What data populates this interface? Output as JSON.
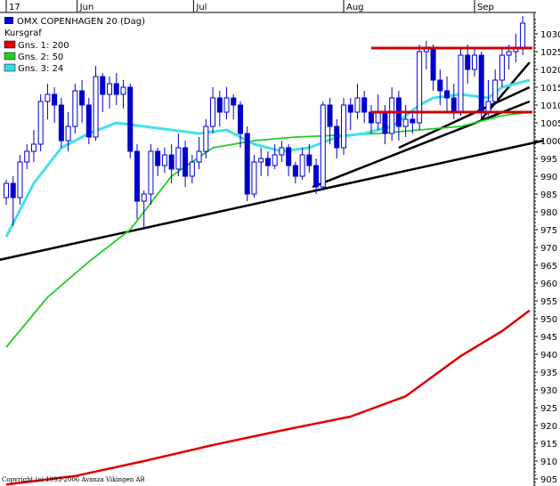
{
  "chart_data": {
    "type": "candlestick",
    "title": "OMX COPENHAGEN 20 (Dag)",
    "subtitle": "Kursgraf",
    "copyright": "Copyright (c) 1993-2006 Avanza Vikingen AB",
    "x_labels": [
      "17",
      "Jun",
      "Jul",
      "Aug",
      "Sep"
    ],
    "ylim": [
      903,
      1036
    ],
    "y_ticks": [
      905,
      910,
      915,
      920,
      925,
      930,
      935,
      940,
      945,
      950,
      955,
      960,
      965,
      970,
      975,
      980,
      985,
      990,
      995,
      1000,
      1005,
      1010,
      1015,
      1020,
      1025,
      1030
    ],
    "grid": false,
    "legend": [
      {
        "label": "Gns. 1: 200",
        "color": "#dd0000"
      },
      {
        "label": "Gns. 2: 50",
        "color": "#22cc22"
      },
      {
        "label": "Gns. 3: 24",
        "color": "#33dddd"
      }
    ],
    "colors": {
      "candle": "#0000cc",
      "ma200": "#dd0000",
      "ma50": "#22cc22",
      "ma24": "#44e0e8",
      "trend": "#000000",
      "hline": "#cc0000"
    },
    "candles": [
      [
        0,
        984,
        988,
        982,
        989
      ],
      [
        1,
        988,
        984,
        976,
        990
      ],
      [
        2,
        984,
        994,
        982,
        996
      ],
      [
        3,
        994,
        997,
        992,
        999
      ],
      [
        4,
        997,
        999,
        994,
        1003
      ],
      [
        5,
        999,
        1011,
        997,
        1013
      ],
      [
        6,
        1011,
        1013,
        1006,
        1016
      ],
      [
        7,
        1013,
        1010,
        1005,
        1015
      ],
      [
        8,
        1010,
        1000,
        998,
        1012
      ],
      [
        9,
        1000,
        1004,
        997,
        1008
      ],
      [
        10,
        1004,
        1014,
        1002,
        1016
      ],
      [
        11,
        1014,
        1010,
        1005,
        1017
      ],
      [
        12,
        1010,
        1001,
        999,
        1012
      ],
      [
        13,
        1001,
        1018,
        1000,
        1021
      ],
      [
        14,
        1018,
        1013,
        1008,
        1019
      ],
      [
        15,
        1013,
        1016,
        1009,
        1018
      ],
      [
        16,
        1016,
        1013,
        1010,
        1019
      ],
      [
        17,
        1013,
        1015,
        1009,
        1017
      ],
      [
        18,
        1015,
        997,
        995,
        1016
      ],
      [
        19,
        997,
        983,
        978,
        999
      ],
      [
        20,
        983,
        985,
        975,
        986
      ],
      [
        21,
        985,
        997,
        982,
        999
      ],
      [
        22,
        997,
        993,
        990,
        998
      ],
      [
        23,
        993,
        996,
        991,
        998
      ],
      [
        24,
        996,
        992,
        988,
        999
      ],
      [
        25,
        992,
        998,
        990,
        1002
      ],
      [
        26,
        998,
        990,
        987,
        1000
      ],
      [
        27,
        990,
        994,
        988,
        996
      ],
      [
        28,
        994,
        997,
        992,
        1001
      ],
      [
        29,
        997,
        1004,
        995,
        1006
      ],
      [
        30,
        1004,
        1012,
        1002,
        1015
      ],
      [
        31,
        1012,
        1008,
        1004,
        1014
      ],
      [
        32,
        1008,
        1012,
        1006,
        1015
      ],
      [
        33,
        1012,
        1010,
        1006,
        1013
      ],
      [
        34,
        1010,
        1002,
        998,
        1011
      ],
      [
        35,
        1002,
        985,
        983,
        1004
      ],
      [
        36,
        985,
        994,
        984,
        996
      ],
      [
        37,
        994,
        995,
        990,
        998
      ],
      [
        38,
        995,
        993,
        990,
        997
      ],
      [
        39,
        993,
        996,
        992,
        999
      ],
      [
        40,
        996,
        998,
        994,
        1000
      ],
      [
        41,
        998,
        993,
        990,
        999
      ],
      [
        42,
        993,
        990,
        988,
        994
      ],
      [
        43,
        990,
        996,
        989,
        998
      ],
      [
        44,
        996,
        993,
        991,
        999
      ],
      [
        45,
        993,
        987,
        985,
        995
      ],
      [
        46,
        987,
        1010,
        986,
        1011
      ],
      [
        47,
        1010,
        1004,
        999,
        1012
      ],
      [
        48,
        1004,
        998,
        995,
        1006
      ],
      [
        49,
        998,
        1010,
        996,
        1012
      ],
      [
        50,
        1010,
        1008,
        1003,
        1012
      ],
      [
        51,
        1008,
        1012,
        1006,
        1016
      ],
      [
        52,
        1012,
        1008,
        1005,
        1014
      ],
      [
        53,
        1008,
        1005,
        1002,
        1010
      ],
      [
        54,
        1005,
        1008,
        1003,
        1013
      ],
      [
        55,
        1008,
        1002,
        999,
        1010
      ],
      [
        56,
        1002,
        1012,
        1000,
        1015
      ],
      [
        57,
        1012,
        1004,
        1000,
        1014
      ],
      [
        58,
        1004,
        1006,
        1001,
        1010
      ],
      [
        59,
        1006,
        1005,
        1002,
        1008
      ],
      [
        60,
        1005,
        1025,
        1003,
        1027
      ],
      [
        61,
        1025,
        1026,
        1020,
        1028
      ],
      [
        62,
        1026,
        1017,
        1014,
        1027
      ],
      [
        63,
        1017,
        1014,
        1010,
        1020
      ],
      [
        64,
        1014,
        1012,
        1008,
        1018
      ],
      [
        65,
        1012,
        1008,
        1006,
        1016
      ],
      [
        66,
        1008,
        1024,
        1007,
        1026
      ],
      [
        67,
        1024,
        1020,
        1016,
        1027
      ],
      [
        68,
        1020,
        1024,
        1018,
        1026
      ],
      [
        69,
        1024,
        1008,
        1006,
        1025
      ],
      [
        70,
        1008,
        1011,
        1007,
        1017
      ],
      [
        71,
        1011,
        1017,
        1010,
        1020
      ],
      [
        72,
        1017,
        1024,
        1015,
        1026
      ],
      [
        73,
        1024,
        1025,
        1020,
        1027
      ],
      [
        74,
        1025,
        1026,
        1022,
        1030
      ],
      [
        75,
        1026,
        1033,
        1024,
        1035
      ]
    ],
    "ma200": [
      [
        0,
        903.4
      ],
      [
        10,
        905.8
      ],
      [
        20,
        910.0
      ],
      [
        30,
        914.5
      ],
      [
        40,
        918.6
      ],
      [
        50,
        922.5
      ],
      [
        58,
        928.2
      ],
      [
        66,
        939.5
      ],
      [
        72,
        946.5
      ],
      [
        76,
        952.3
      ]
    ],
    "ma50": [
      [
        0,
        942
      ],
      [
        6,
        956
      ],
      [
        12,
        966
      ],
      [
        18,
        975
      ],
      [
        24,
        990
      ],
      [
        30,
        998
      ],
      [
        36,
        1000
      ],
      [
        42,
        1001
      ],
      [
        48,
        1001.5
      ],
      [
        54,
        1002
      ],
      [
        60,
        1003
      ],
      [
        66,
        1004
      ],
      [
        72,
        1007
      ],
      [
        76,
        1008
      ]
    ],
    "ma24": [
      [
        0,
        973
      ],
      [
        4,
        988
      ],
      [
        8,
        998
      ],
      [
        12,
        1002
      ],
      [
        16,
        1005
      ],
      [
        20,
        1004
      ],
      [
        24,
        1003
      ],
      [
        28,
        1002
      ],
      [
        32,
        1003
      ],
      [
        36,
        999
      ],
      [
        40,
        997
      ],
      [
        44,
        998
      ],
      [
        48,
        1001
      ],
      [
        52,
        1002
      ],
      [
        56,
        1004
      ],
      [
        60,
        1010
      ],
      [
        62,
        1012
      ],
      [
        66,
        1013
      ],
      [
        70,
        1012
      ],
      [
        72,
        1015
      ],
      [
        76,
        1017
      ]
    ],
    "trendlines": [
      {
        "x1": -1,
        "y1": 966.5,
        "x2": 78,
        "y2": 1000
      },
      {
        "x1": 44.5,
        "y1": 987,
        "x2": 76,
        "y2": 1011
      },
      {
        "x1": 57,
        "y1": 998,
        "x2": 76,
        "y2": 1015
      },
      {
        "x1": 69,
        "y1": 1006,
        "x2": 76,
        "y2": 1022
      }
    ],
    "hlines": [
      {
        "x1": 53,
        "x2": 78,
        "y": 1026
      },
      {
        "x1": 53,
        "x2": 78,
        "y": 1008
      }
    ],
    "month_ticks": [
      {
        "label": "17",
        "x": 0
      },
      {
        "label": "Jun",
        "x": 10.3
      },
      {
        "label": "Jul",
        "x": 27.2
      },
      {
        "label": "Aug",
        "x": 49
      },
      {
        "label": "Sep",
        "x": 68
      }
    ]
  }
}
